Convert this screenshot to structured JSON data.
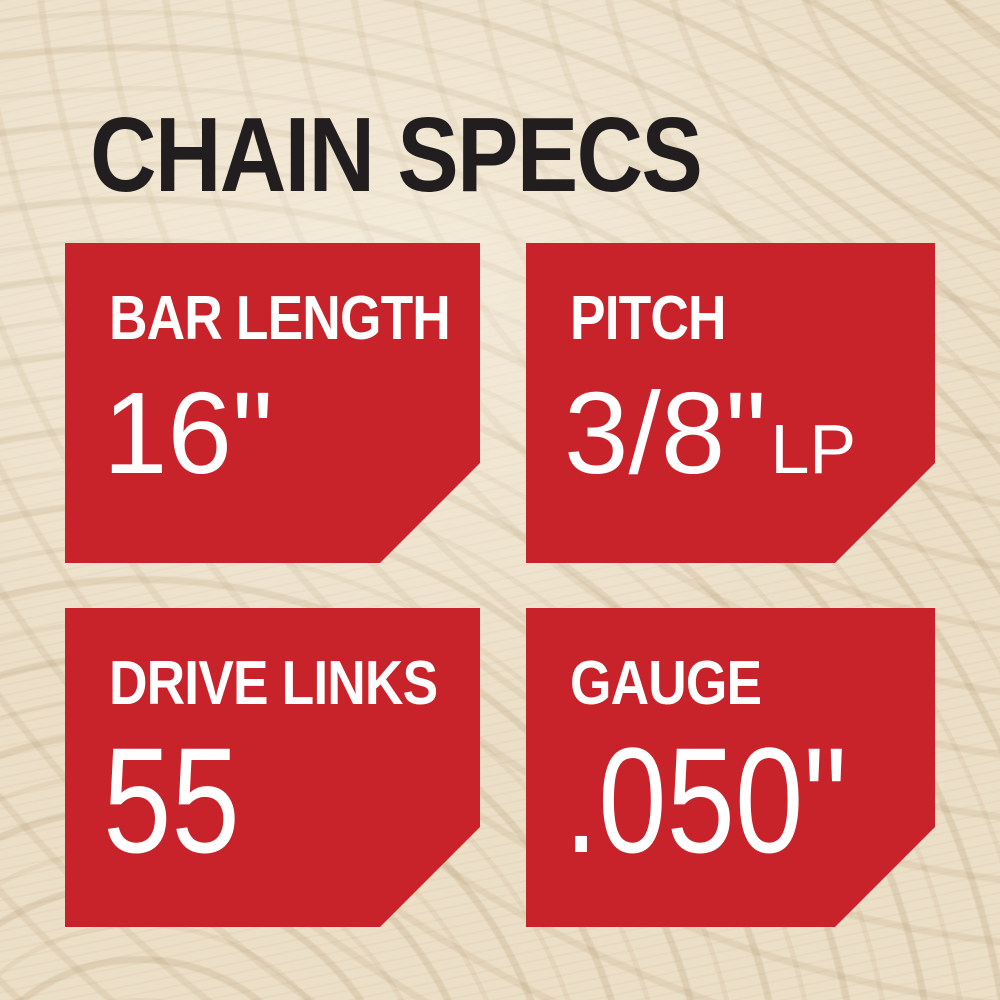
{
  "title": "CHAIN SPECS",
  "colors": {
    "card_red": "#c8232a",
    "title_ink": "#221e20",
    "value_white": "#ffffff",
    "wood_base": "#ecdfc8",
    "wood_grain": "#ab9067"
  },
  "cards": [
    {
      "name": "bar-length",
      "label": "BAR LENGTH",
      "value": "16\""
    },
    {
      "name": "pitch",
      "label": "PITCH",
      "value": "3/8\"",
      "value_suffix": "LP"
    },
    {
      "name": "drive-links",
      "label": "DRIVE LINKS",
      "value": "55"
    },
    {
      "name": "gauge",
      "label": "GAUGE",
      "value": ".050\""
    }
  ]
}
